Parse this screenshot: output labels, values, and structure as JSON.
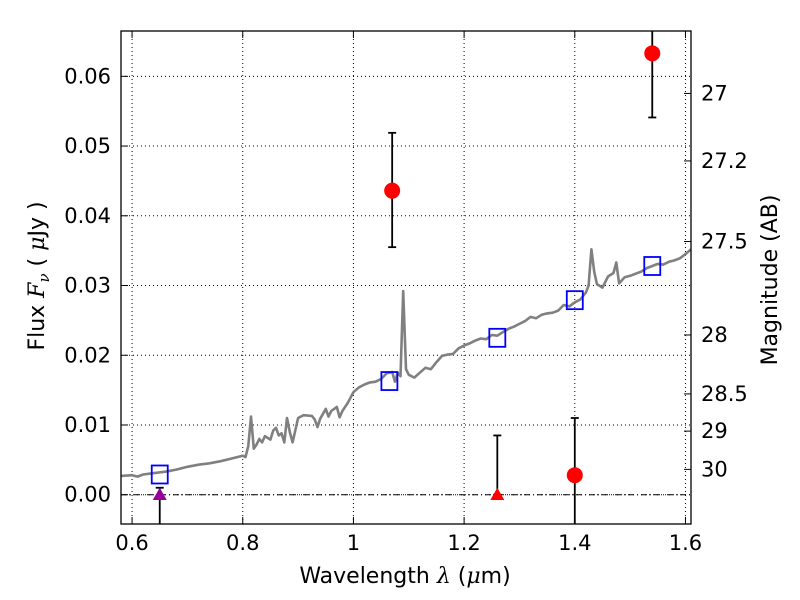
{
  "chart_data": {
    "type": "scatter",
    "xlabel": "Wavelength  λ (μm)",
    "ylabel": "Flux  F_ν  ( μJy )",
    "ylabel_parts": {
      "prefix": "Flux  ",
      "var": "F",
      "sub": "ν",
      "open": "  ( ",
      "mu": "μ",
      "unit": "Jy )"
    },
    "xlabel_parts": {
      "prefix": "Wavelength  ",
      "var": "λ",
      "open": " (",
      "mu": "μ",
      "unit": "m)"
    },
    "y2label": "Magnitude (AB)",
    "xlim": [
      0.58,
      1.61
    ],
    "ylim": [
      -0.0042,
      0.0665
    ],
    "grid": true,
    "x_ticks": [
      {
        "value": 0.6,
        "label": "0.6"
      },
      {
        "value": 0.8,
        "label": "0.8"
      },
      {
        "value": 1.0,
        "label": "1"
      },
      {
        "value": 1.2,
        "label": "1.2"
      },
      {
        "value": 1.4,
        "label": "1.4"
      },
      {
        "value": 1.6,
        "label": "1.6"
      }
    ],
    "y_ticks": [
      {
        "value": 0.0,
        "label": "0.00"
      },
      {
        "value": 0.01,
        "label": "0.01"
      },
      {
        "value": 0.02,
        "label": "0.02"
      },
      {
        "value": 0.03,
        "label": "0.03"
      },
      {
        "value": 0.04,
        "label": "0.04"
      },
      {
        "value": 0.05,
        "label": "0.05"
      },
      {
        "value": 0.06,
        "label": "0.06"
      }
    ],
    "y2_ticks": [
      {
        "value": 27,
        "label": "27"
      },
      {
        "value": 27.2,
        "label": "27.2"
      },
      {
        "value": 27.5,
        "label": "27.5"
      },
      {
        "value": 28,
        "label": "28"
      },
      {
        "value": 28.5,
        "label": "28.5"
      },
      {
        "value": 29,
        "label": "29"
      },
      {
        "value": 30,
        "label": "30"
      }
    ],
    "zero_line": 0.0,
    "model_spectrum": {
      "color": "#808080",
      "points": [
        [
          0.58,
          0.0027
        ],
        [
          0.6,
          0.0028
        ],
        [
          0.61,
          0.0026
        ],
        [
          0.62,
          0.0029
        ],
        [
          0.64,
          0.0031
        ],
        [
          0.66,
          0.0033
        ],
        [
          0.68,
          0.0036
        ],
        [
          0.7,
          0.004
        ],
        [
          0.72,
          0.0043
        ],
        [
          0.74,
          0.0045
        ],
        [
          0.76,
          0.0048
        ],
        [
          0.78,
          0.0052
        ],
        [
          0.8,
          0.0056
        ],
        [
          0.805,
          0.0054
        ],
        [
          0.81,
          0.007
        ],
        [
          0.815,
          0.0112
        ],
        [
          0.82,
          0.0066
        ],
        [
          0.825,
          0.0072
        ],
        [
          0.83,
          0.008
        ],
        [
          0.835,
          0.0075
        ],
        [
          0.84,
          0.0084
        ],
        [
          0.85,
          0.0079
        ],
        [
          0.855,
          0.0092
        ],
        [
          0.86,
          0.0096
        ],
        [
          0.865,
          0.0085
        ],
        [
          0.87,
          0.0088
        ],
        [
          0.875,
          0.0075
        ],
        [
          0.88,
          0.011
        ],
        [
          0.885,
          0.009
        ],
        [
          0.89,
          0.0075
        ],
        [
          0.9,
          0.011
        ],
        [
          0.91,
          0.0114
        ],
        [
          0.925,
          0.0113
        ],
        [
          0.93,
          0.0108
        ],
        [
          0.935,
          0.0097
        ],
        [
          0.94,
          0.0109
        ],
        [
          0.95,
          0.0123
        ],
        [
          0.955,
          0.0112
        ],
        [
          0.96,
          0.012
        ],
        [
          0.97,
          0.0126
        ],
        [
          0.975,
          0.0111
        ],
        [
          0.98,
          0.012
        ],
        [
          0.99,
          0.0132
        ],
        [
          1.0,
          0.0147
        ],
        [
          1.01,
          0.0154
        ],
        [
          1.02,
          0.0158
        ],
        [
          1.03,
          0.0161
        ],
        [
          1.04,
          0.0162
        ],
        [
          1.05,
          0.0166
        ],
        [
          1.06,
          0.0174
        ],
        [
          1.07,
          0.0176
        ],
        [
          1.075,
          0.0162
        ],
        [
          1.08,
          0.0175
        ],
        [
          1.085,
          0.017
        ],
        [
          1.09,
          0.0292
        ],
        [
          1.095,
          0.018
        ],
        [
          1.1,
          0.0172
        ],
        [
          1.11,
          0.0168
        ],
        [
          1.12,
          0.0175
        ],
        [
          1.13,
          0.0182
        ],
        [
          1.14,
          0.018
        ],
        [
          1.15,
          0.019
        ],
        [
          1.16,
          0.0199
        ],
        [
          1.17,
          0.0201
        ],
        [
          1.18,
          0.0202
        ],
        [
          1.19,
          0.021
        ],
        [
          1.2,
          0.0214
        ],
        [
          1.21,
          0.0217
        ],
        [
          1.22,
          0.0221
        ],
        [
          1.23,
          0.0224
        ],
        [
          1.24,
          0.0223
        ],
        [
          1.25,
          0.0229
        ],
        [
          1.26,
          0.0228
        ],
        [
          1.27,
          0.0233
        ],
        [
          1.28,
          0.0238
        ],
        [
          1.29,
          0.0241
        ],
        [
          1.3,
          0.0245
        ],
        [
          1.31,
          0.0249
        ],
        [
          1.32,
          0.0255
        ],
        [
          1.33,
          0.0253
        ],
        [
          1.34,
          0.0258
        ],
        [
          1.35,
          0.026
        ],
        [
          1.36,
          0.0261
        ],
        [
          1.37,
          0.0264
        ],
        [
          1.38,
          0.0272
        ],
        [
          1.39,
          0.027
        ],
        [
          1.4,
          0.0276
        ],
        [
          1.41,
          0.028
        ],
        [
          1.42,
          0.029
        ],
        [
          1.425,
          0.03
        ],
        [
          1.43,
          0.0352
        ],
        [
          1.435,
          0.032
        ],
        [
          1.44,
          0.0302
        ],
        [
          1.45,
          0.0297
        ],
        [
          1.46,
          0.0313
        ],
        [
          1.47,
          0.0318
        ],
        [
          1.475,
          0.0333
        ],
        [
          1.48,
          0.0303
        ],
        [
          1.49,
          0.0312
        ],
        [
          1.5,
          0.0314
        ],
        [
          1.51,
          0.0317
        ],
        [
          1.52,
          0.032
        ],
        [
          1.53,
          0.0325
        ],
        [
          1.54,
          0.0328
        ],
        [
          1.55,
          0.0331
        ],
        [
          1.56,
          0.033
        ],
        [
          1.57,
          0.0334
        ],
        [
          1.58,
          0.0336
        ],
        [
          1.59,
          0.0339
        ],
        [
          1.6,
          0.0345
        ],
        [
          1.61,
          0.0352
        ]
      ]
    },
    "synthetic_photometry": {
      "marker": "open-square",
      "color": "#0000ff",
      "points": [
        {
          "x": 0.65,
          "y": 0.0029
        },
        {
          "x": 1.065,
          "y": 0.0163
        },
        {
          "x": 1.26,
          "y": 0.0225
        },
        {
          "x": 1.4,
          "y": 0.0279
        },
        {
          "x": 1.54,
          "y": 0.0328
        }
      ]
    },
    "observed_detections": {
      "marker": "filled-circle",
      "color": "#ff0000",
      "points": [
        {
          "x": 1.07,
          "y": 0.0436,
          "ylo": 0.0355,
          "yhi": 0.0519
        },
        {
          "x": 1.4,
          "y": 0.0028,
          "ylo": -0.0042,
          "yhi": 0.011
        },
        {
          "x": 1.54,
          "y": 0.0633,
          "ylo": 0.0541,
          "yhi": 0.0665
        }
      ]
    },
    "upper_limits": {
      "marker": "triangle",
      "points": [
        {
          "x": 0.65,
          "y": 0.0,
          "color": "#990099",
          "ylo": -0.0042,
          "yhi": 0.001
        },
        {
          "x": 1.26,
          "y": 0.0,
          "color": "#ff0000",
          "ylo": 0.0,
          "yhi": 0.0085
        }
      ]
    }
  }
}
